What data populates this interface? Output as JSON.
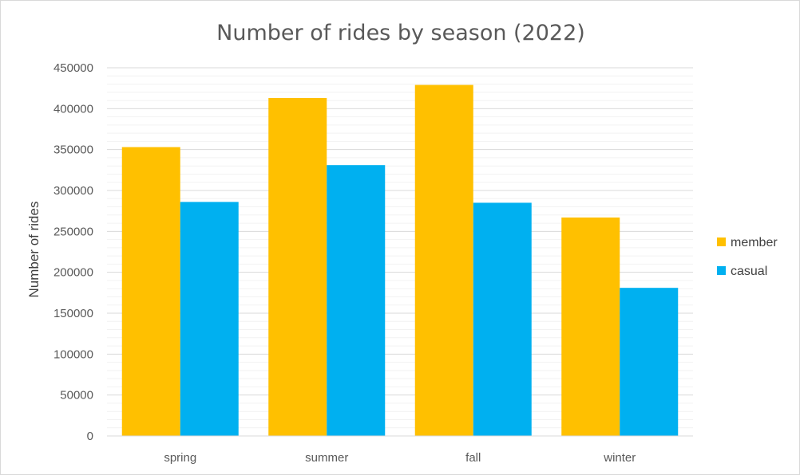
{
  "chart_data": {
    "type": "bar",
    "title": "Number of rides by season (2022)",
    "xlabel": "",
    "ylabel": "Number of rides",
    "categories": [
      "spring",
      "summer",
      "fall",
      "winter"
    ],
    "series": [
      {
        "name": "member",
        "color": "#FFC000",
        "values": [
          353000,
          413000,
          429000,
          267000
        ]
      },
      {
        "name": "casual",
        "color": "#00B0F0",
        "values": [
          286000,
          331000,
          285000,
          181000
        ]
      }
    ],
    "ylim": [
      0,
      450000
    ],
    "yticks": [
      "0",
      "50000",
      "100000",
      "150000",
      "200000",
      "250000",
      "300000",
      "350000",
      "400000",
      "450000"
    ],
    "grid": true,
    "legend_position": "right"
  }
}
